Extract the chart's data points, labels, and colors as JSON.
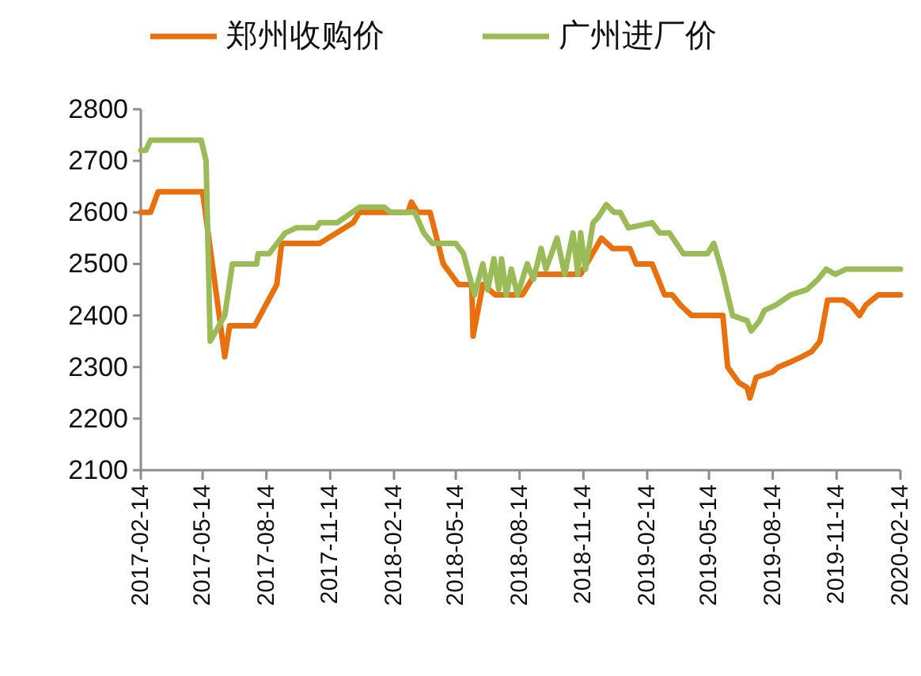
{
  "chart_data": {
    "type": "line",
    "grid": false,
    "legend": "top",
    "marker": "none",
    "line_style": "solid",
    "ylim": [
      2100,
      2800
    ],
    "yticks": [
      2100,
      2200,
      2300,
      2400,
      2500,
      2600,
      2700,
      2800
    ],
    "xlim": [
      "2017-02-14",
      "2020-02-14"
    ],
    "xticks": [
      "2017-02-14",
      "2017-05-14",
      "2017-08-14",
      "2017-11-14",
      "2018-02-14",
      "2018-05-14",
      "2018-08-14",
      "2018-11-14",
      "2019-02-14",
      "2019-05-14",
      "2019-08-14",
      "2019-11-14",
      "2020-02-14"
    ],
    "series": [
      {
        "name": "郑州收购价",
        "color": "#e8700f",
        "x": [
          "2017-02-14",
          "2017-02-28",
          "2017-03-11",
          "2017-05-14",
          "2017-06-15",
          "2017-06-22",
          "2017-07-28",
          "2017-08-29",
          "2017-09-05",
          "2017-10-30",
          "2017-12-17",
          "2017-12-26",
          "2018-03-06",
          "2018-03-11",
          "2018-03-20",
          "2018-04-07",
          "2018-04-26",
          "2018-05-18",
          "2018-06-06",
          "2018-06-08",
          "2018-06-22",
          "2018-07-10",
          "2018-08-18",
          "2018-09-05",
          "2018-11-10",
          "2018-12-10",
          "2018-12-26",
          "2019-01-20",
          "2019-01-29",
          "2019-02-21",
          "2019-03-11",
          "2019-03-22",
          "2019-04-03",
          "2019-04-19",
          "2019-06-03",
          "2019-06-10",
          "2019-06-26",
          "2019-07-08",
          "2019-07-12",
          "2019-07-21",
          "2019-08-13",
          "2019-08-22",
          "2019-09-09",
          "2019-09-25",
          "2019-10-09",
          "2019-10-21",
          "2019-11-01",
          "2019-11-24",
          "2019-12-05",
          "2019-12-17",
          "2019-12-26",
          "2020-01-13",
          "2020-02-14"
        ],
        "values": [
          2600,
          2600,
          2640,
          2640,
          2320,
          2380,
          2380,
          2460,
          2540,
          2540,
          2580,
          2600,
          2600,
          2620,
          2600,
          2600,
          2500,
          2460,
          2460,
          2360,
          2460,
          2440,
          2440,
          2480,
          2480,
          2550,
          2530,
          2530,
          2500,
          2500,
          2440,
          2440,
          2420,
          2400,
          2400,
          2300,
          2270,
          2260,
          2240,
          2280,
          2290,
          2300,
          2310,
          2320,
          2330,
          2350,
          2430,
          2430,
          2420,
          2400,
          2420,
          2440,
          2440
        ]
      },
      {
        "name": "广州进厂价",
        "color": "#9bbb59",
        "x": [
          "2017-02-14",
          "2017-02-21",
          "2017-02-28",
          "2017-05-12",
          "2017-05-19",
          "2017-05-25",
          "2017-06-15",
          "2017-06-26",
          "2017-07-31",
          "2017-08-02",
          "2017-08-18",
          "2017-09-10",
          "2017-09-26",
          "2017-10-25",
          "2017-10-30",
          "2017-11-24",
          "2017-12-26",
          "2018-01-31",
          "2018-02-09",
          "2018-03-16",
          "2018-03-29",
          "2018-04-10",
          "2018-05-14",
          "2018-05-25",
          "2018-06-10",
          "2018-06-22",
          "2018-06-29",
          "2018-07-08",
          "2018-07-15",
          "2018-07-19",
          "2018-07-26",
          "2018-08-02",
          "2018-08-11",
          "2018-08-25",
          "2018-09-03",
          "2018-09-14",
          "2018-09-21",
          "2018-10-07",
          "2018-10-18",
          "2018-10-30",
          "2018-11-06",
          "2018-11-10",
          "2018-11-17",
          "2018-11-28",
          "2018-12-05",
          "2018-12-17",
          "2018-12-28",
          "2019-01-06",
          "2019-01-18",
          "2019-02-21",
          "2019-03-04",
          "2019-03-18",
          "2019-04-07",
          "2019-05-12",
          "2019-05-21",
          "2019-06-03",
          "2019-06-17",
          "2019-07-08",
          "2019-07-14",
          "2019-07-26",
          "2019-08-02",
          "2019-08-18",
          "2019-09-09",
          "2019-10-02",
          "2019-10-18",
          "2019-10-30",
          "2019-11-12",
          "2019-11-28",
          "2020-02-14"
        ],
        "values": [
          2720,
          2720,
          2740,
          2740,
          2700,
          2350,
          2400,
          2500,
          2500,
          2520,
          2520,
          2560,
          2570,
          2570,
          2580,
          2580,
          2610,
          2610,
          2600,
          2600,
          2560,
          2540,
          2540,
          2520,
          2440,
          2500,
          2450,
          2510,
          2450,
          2510,
          2440,
          2490,
          2440,
          2500,
          2470,
          2530,
          2490,
          2550,
          2480,
          2560,
          2480,
          2560,
          2490,
          2580,
          2590,
          2615,
          2600,
          2600,
          2570,
          2580,
          2560,
          2560,
          2520,
          2520,
          2540,
          2480,
          2400,
          2390,
          2370,
          2390,
          2410,
          2420,
          2440,
          2450,
          2470,
          2490,
          2480,
          2490,
          2490
        ]
      }
    ]
  }
}
